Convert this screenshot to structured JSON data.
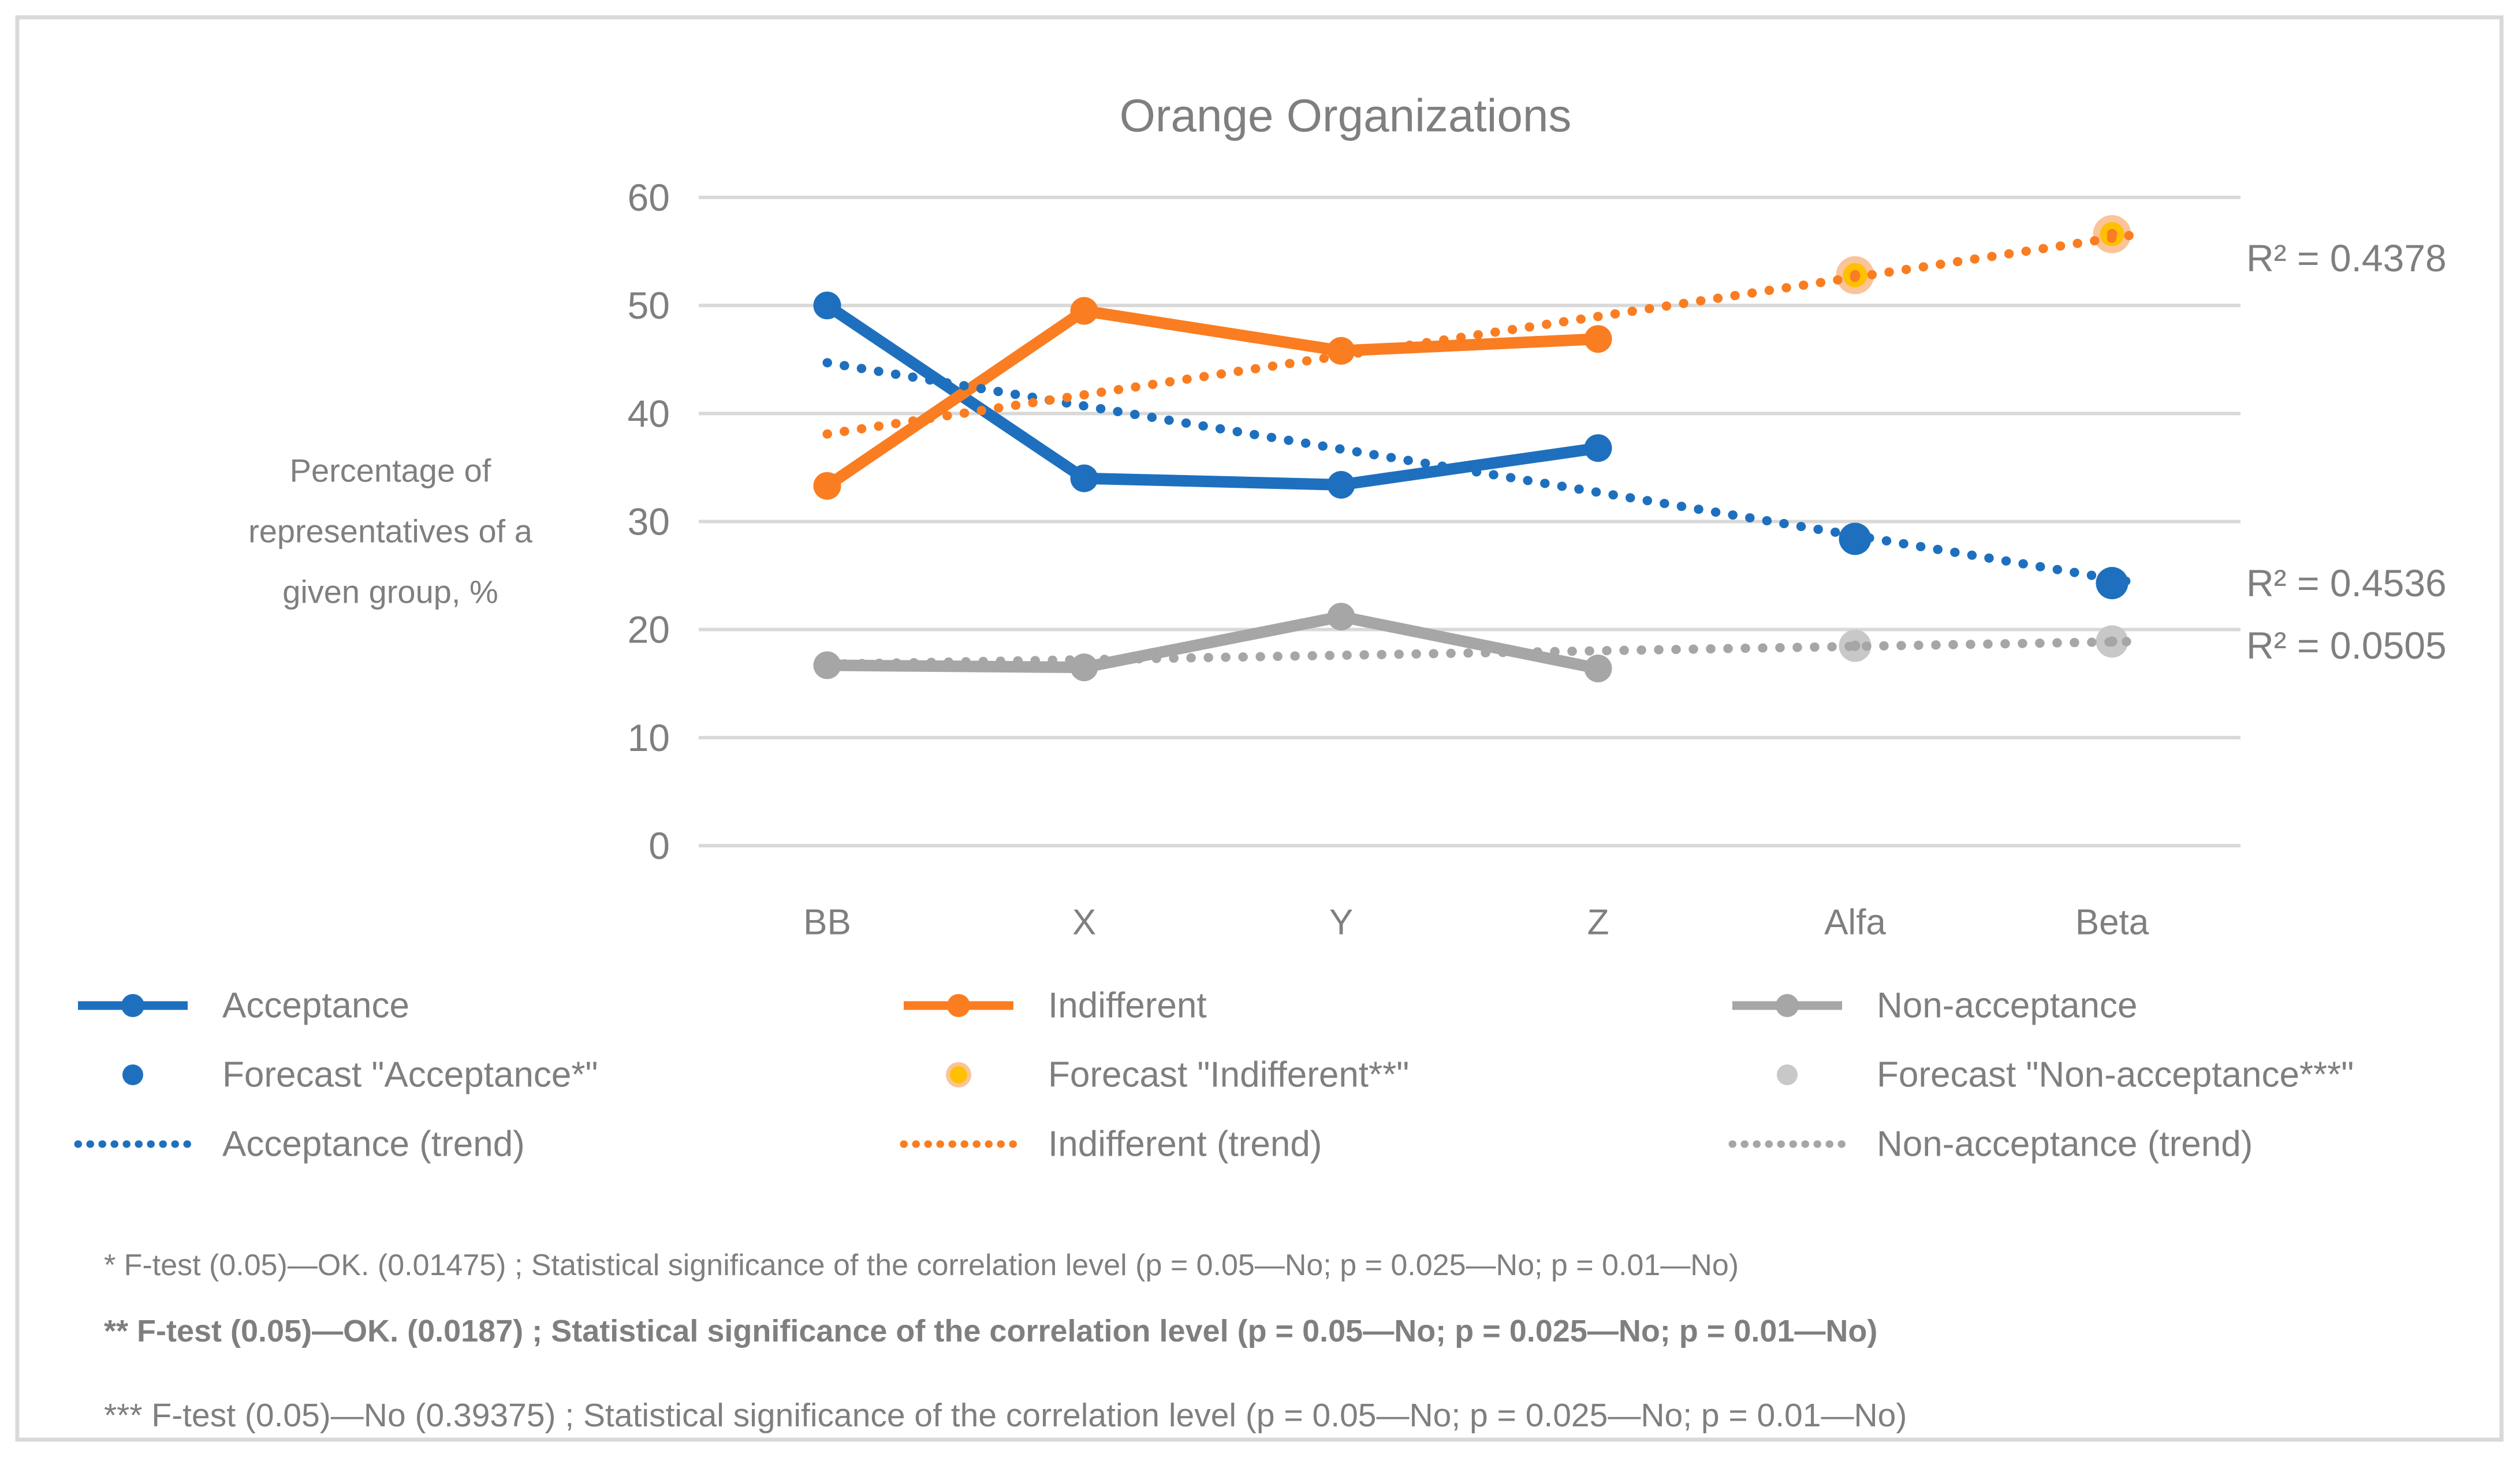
{
  "figure": {
    "background": "#FFFFFF",
    "border_color": "#D9D9D9",
    "text_color": "#7F7F7F",
    "grid_color": "#D9D9D9"
  },
  "chart_data": {
    "type": "line",
    "title": "Orange Organizations",
    "y_axis_title_lines": [
      "Percentage of",
      "representatives of a",
      "given group, %"
    ],
    "categories": [
      "BB",
      "X",
      "Y",
      "Z",
      "Alfa",
      "Beta"
    ],
    "ylim": [
      0,
      60
    ],
    "y_ticks": [
      0,
      10,
      20,
      30,
      40,
      50,
      60
    ],
    "grid": true,
    "legend_position": "bottom",
    "series": [
      {
        "name": "Acceptance",
        "color": "#1E70BE",
        "values": [
          50,
          34,
          33.4,
          36.8
        ]
      },
      {
        "name": "Indifferent",
        "color": "#FA7D21",
        "values": [
          33.3,
          49.5,
          45.8,
          46.9
        ]
      },
      {
        "name": "Non-acceptance",
        "color": "#A6A6A6",
        "values": [
          16.7,
          16.5,
          21.2,
          16.4
        ]
      }
    ],
    "forecasts": [
      {
        "name": "Forecast \"Acceptance*\"",
        "fill": "#1E70BE",
        "ring": null,
        "center_dot": null,
        "categories": [
          "Alfa",
          "Beta"
        ],
        "values": [
          28.4,
          24.3
        ]
      },
      {
        "name": "Forecast \"Indifferent**\"",
        "fill": "#FFC000",
        "ring": "#FAC49A",
        "center_dot": "#FA7D21",
        "categories": [
          "Alfa",
          "Beta"
        ],
        "values": [
          52.8,
          56.6
        ]
      },
      {
        "name": "Forecast \"Non-acceptance***\"",
        "fill": "#C8C8C8",
        "ring": null,
        "center_dot": "#A6A6A6",
        "categories": [
          "Alfa",
          "Beta"
        ],
        "values": [
          18.5,
          18.9
        ]
      }
    ],
    "trends": [
      {
        "name": "Acceptance (trend)",
        "color": "#1E70BE",
        "from": 44.7,
        "to": 24.3
      },
      {
        "name": "Indifferent (trend)",
        "color": "#FA7D21",
        "from": 38.1,
        "to": 56.6
      },
      {
        "name": "Non-acceptance (trend)",
        "color": "#A6A6A6",
        "from": 16.8,
        "to": 18.9
      }
    ],
    "r2_labels": [
      {
        "text": "R² = 0.4378",
        "series": "Indifferent (trend)"
      },
      {
        "text": "R² = 0.4536",
        "series": "Acceptance (trend)"
      },
      {
        "text": "R² = 0.0505",
        "series": "Non-acceptance (trend)"
      }
    ]
  },
  "legend": {
    "columns": [
      {
        "items": [
          {
            "type": "line",
            "label": "Acceptance"
          },
          {
            "type": "dot",
            "label": "Forecast \"Acceptance*\""
          },
          {
            "type": "dotted",
            "label": "Acceptance (trend)"
          }
        ]
      },
      {
        "items": [
          {
            "type": "line",
            "label": "Indifferent"
          },
          {
            "type": "dot",
            "label": "Forecast \"Indifferent**\""
          },
          {
            "type": "dotted",
            "label": "Indifferent (trend)"
          }
        ]
      },
      {
        "items": [
          {
            "type": "line",
            "label": "Non-acceptance"
          },
          {
            "type": "dot",
            "label": "Forecast \"Non-acceptance***\""
          },
          {
            "type": "dotted",
            "label": "Non-acceptance (trend)"
          }
        ]
      }
    ]
  },
  "footnotes": [
    "* F-test (0.05)—OK. (0.01475) ; Statistical significance of the correlation level (p = 0.05—No; p = 0.025—No; p = 0.01—No)",
    "** F-test (0.05)—OK. (0.0187) ; Statistical significance of the correlation level (p = 0.05—No; p = 0.025—No; p = 0.01—No)",
    "*** F-test (0.05)—No (0.39375) ; Statistical significance of the correlation level (p = 0.05—No; p = 0.025—No; p = 0.01—No)"
  ]
}
